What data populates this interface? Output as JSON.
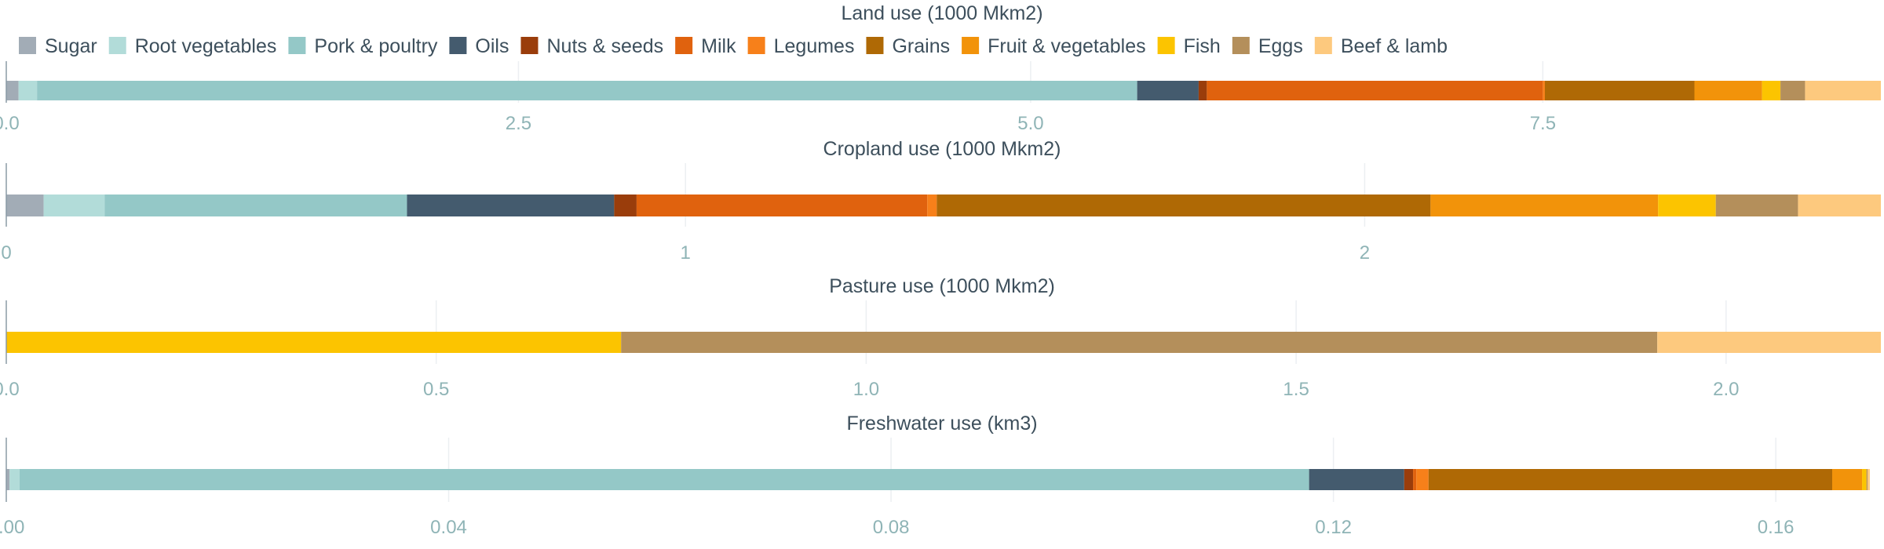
{
  "chart_data": {
    "type": "bar",
    "orientation": "horizontal-stacked",
    "legend": {
      "placement": "top-left",
      "items": [
        {
          "name": "Sugar",
          "color": "#a2acb6"
        },
        {
          "name": "Root vegetables",
          "color": "#b2dcd9"
        },
        {
          "name": "Pork & poultry",
          "color": "#94c8c7"
        },
        {
          "name": "Oils",
          "color": "#445b6e"
        },
        {
          "name": "Nuts & seeds",
          "color": "#9a3d0b"
        },
        {
          "name": "Milk",
          "color": "#e0620e"
        },
        {
          "name": "Legumes",
          "color": "#f7801a"
        },
        {
          "name": "Grains",
          "color": "#af6905"
        },
        {
          "name": "Fruit & vegetables",
          "color": "#f2930a"
        },
        {
          "name": "Fish",
          "color": "#fcc400"
        },
        {
          "name": "Eggs",
          "color": "#b48f5b"
        },
        {
          "name": "Beef & lamb",
          "color": "#fdc97e"
        }
      ]
    },
    "panels": [
      {
        "title": "Land use (1000 Mkm2)",
        "xlim": [
          0,
          9.15
        ],
        "ticks": [
          0,
          2.5,
          5,
          7.5
        ],
        "tick_labels": [
          "0.0",
          "2.5",
          "5.0",
          "7.5"
        ],
        "grid": true,
        "segments": [
          {
            "name": "Sugar",
            "value": 0.06
          },
          {
            "name": "Root vegetables",
            "value": 0.09
          },
          {
            "name": "Pork & poultry",
            "value": 5.37
          },
          {
            "name": "Oils",
            "value": 0.3
          },
          {
            "name": "Nuts & seeds",
            "value": 0.04
          },
          {
            "name": "Milk",
            "value": 1.64
          },
          {
            "name": "Legumes",
            "value": 0.01
          },
          {
            "name": "Grains",
            "value": 0.73
          },
          {
            "name": "Fruit & vegetables",
            "value": 0.33
          },
          {
            "name": "Fish",
            "value": 0.09
          },
          {
            "name": "Eggs",
            "value": 0.12
          },
          {
            "name": "Beef & lamb",
            "value": 0.37
          }
        ]
      },
      {
        "title": "Cropland use (1000 Mkm2)",
        "xlim": [
          0,
          2.76
        ],
        "ticks": [
          0,
          1,
          2
        ],
        "tick_labels": [
          "0",
          "1",
          "2"
        ],
        "grid": true,
        "segments": [
          {
            "name": "Sugar",
            "value": 0.055
          },
          {
            "name": "Root vegetables",
            "value": 0.09
          },
          {
            "name": "Pork & poultry",
            "value": 0.445
          },
          {
            "name": "Oils",
            "value": 0.305
          },
          {
            "name": "Nuts & seeds",
            "value": 0.033
          },
          {
            "name": "Milk",
            "value": 0.428
          },
          {
            "name": "Legumes",
            "value": 0.014
          },
          {
            "name": "Grains",
            "value": 0.727
          },
          {
            "name": "Fruit & vegetables",
            "value": 0.335
          },
          {
            "name": "Fish",
            "value": 0.085
          },
          {
            "name": "Eggs",
            "value": 0.121
          },
          {
            "name": "Beef & lamb",
            "value": 0.122
          }
        ]
      },
      {
        "title": "Pasture use (1000 Mkm2)",
        "xlim": [
          0,
          2.18
        ],
        "ticks": [
          0,
          0.5,
          1,
          1.5,
          2
        ],
        "tick_labels": [
          "0.0",
          "0.5",
          "1.0",
          "1.5",
          "2.0"
        ],
        "grid": true,
        "segments": [
          {
            "name": "Fish",
            "value": 0.715
          },
          {
            "name": "Eggs",
            "value": 1.205
          },
          {
            "name": "Beef & lamb",
            "value": 0.26
          }
        ]
      },
      {
        "title": "Freshwater use (km3)",
        "xlim": [
          0,
          0.1695
        ],
        "ticks": [
          0,
          0.04,
          0.08,
          0.12,
          0.16
        ],
        "tick_labels": [
          "0.00",
          "0.04",
          "0.08",
          "0.12",
          "0.16"
        ],
        "grid": true,
        "segments": [
          {
            "name": "Sugar",
            "value": 0.0003
          },
          {
            "name": "Root vegetables",
            "value": 0.0009
          },
          {
            "name": "Pork & poultry",
            "value": 0.1166
          },
          {
            "name": "Oils",
            "value": 0.0086
          },
          {
            "name": "Nuts & seeds",
            "value": 0.0008
          },
          {
            "name": "Milk",
            "value": 0.0003
          },
          {
            "name": "Legumes",
            "value": 0.0011
          },
          {
            "name": "Grains",
            "value": 0.0365
          },
          {
            "name": "Fruit & vegetables",
            "value": 0.0027
          },
          {
            "name": "Fish",
            "value": 0.0004
          },
          {
            "name": "Eggs",
            "value": 0.0001
          },
          {
            "name": "Beef & lamb",
            "value": 0.0002
          }
        ]
      }
    ]
  }
}
